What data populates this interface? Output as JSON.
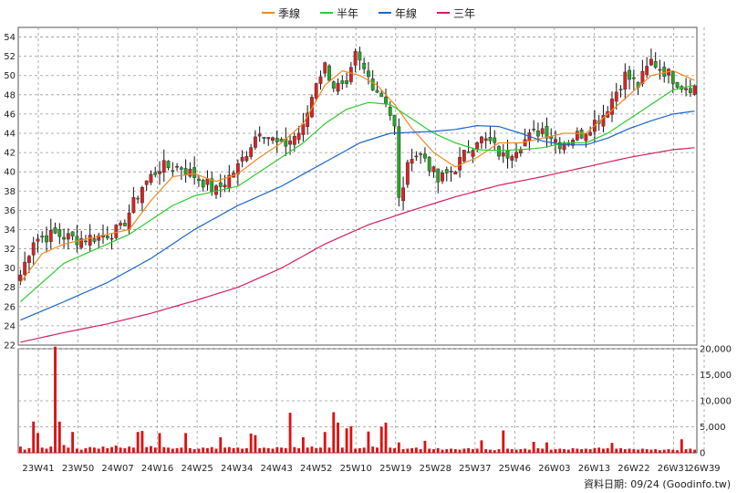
{
  "legend": [
    {
      "label": "季線",
      "color": "#f08a20"
    },
    {
      "label": "半年",
      "color": "#2ecc2e"
    },
    {
      "label": "年線",
      "color": "#1a66cc"
    },
    {
      "label": "三年",
      "color": "#d4205a"
    }
  ],
  "source_text": "資料日期: 09/24  (Goodinfo.tw)",
  "chart_data": [
    {
      "type": "candlestick",
      "title": "",
      "ylim": [
        22,
        55
      ],
      "y_ticks": [
        "22",
        "24",
        "26",
        "28",
        "30",
        "32",
        "34",
        "36",
        "38",
        "40",
        "42",
        "44",
        "46",
        "48",
        "50",
        "52",
        "54"
      ],
      "x_ticks": [
        "23W41",
        "23W50",
        "24W07",
        "24W16",
        "24W25",
        "24W34",
        "24W43",
        "24W52",
        "25W10",
        "25W19",
        "25W28",
        "25W37",
        "25W46",
        "26W03",
        "26W13",
        "26W22",
        "26W31",
        "26W39"
      ],
      "grid": true,
      "up_color": "#e02020",
      "down_color": "#22aa22",
      "close_key_points": [
        [
          0,
          29.3
        ],
        [
          3,
          33.0
        ],
        [
          8,
          33.5
        ],
        [
          13,
          33.0
        ],
        [
          18,
          33.3
        ],
        [
          23,
          34.0
        ],
        [
          28,
          38.5
        ],
        [
          32,
          40.5
        ],
        [
          37,
          40.5
        ],
        [
          42,
          39.0
        ],
        [
          45,
          38.0
        ],
        [
          50,
          40.5
        ],
        [
          55,
          44.5
        ],
        [
          60,
          42.5
        ],
        [
          65,
          44.5
        ],
        [
          68,
          49.5
        ],
        [
          70,
          51.0
        ],
        [
          72,
          49.0
        ],
        [
          75,
          48.5
        ],
        [
          77,
          52.0
        ],
        [
          79,
          50.5
        ],
        [
          82,
          48.5
        ],
        [
          84,
          47.5
        ],
        [
          86,
          44.5
        ],
        [
          87,
          37.0
        ],
        [
          90,
          42.0
        ],
        [
          93,
          41.5
        ],
        [
          96,
          39.0
        ],
        [
          100,
          40.5
        ],
        [
          105,
          43.5
        ],
        [
          108,
          43.0
        ],
        [
          111,
          41.5
        ],
        [
          115,
          43.0
        ],
        [
          120,
          44.5
        ],
        [
          124,
          43.0
        ],
        [
          129,
          44.0
        ],
        [
          134,
          46.0
        ],
        [
          139,
          50.0
        ],
        [
          142,
          49.0
        ],
        [
          145,
          51.5
        ],
        [
          148,
          50.5
        ],
        [
          152,
          49.0
        ],
        [
          155,
          48.8
        ]
      ],
      "ma_series": [
        {
          "key": "quarter",
          "key_points": [
            [
              0,
              28.5
            ],
            [
              5,
              31.5
            ],
            [
              10,
              32.5
            ],
            [
              15,
              33.0
            ],
            [
              20,
              33.5
            ],
            [
              25,
              34.0
            ],
            [
              30,
              37.0
            ],
            [
              35,
              39.5
            ],
            [
              40,
              39.8
            ],
            [
              45,
              39.0
            ],
            [
              50,
              39.8
            ],
            [
              55,
              41.5
            ],
            [
              60,
              43.0
            ],
            [
              65,
              45.0
            ],
            [
              70,
              49.0
            ],
            [
              74,
              50.5
            ],
            [
              78,
              50.0
            ],
            [
              82,
              49.0
            ],
            [
              86,
              47.0
            ],
            [
              90,
              44.5
            ],
            [
              95,
              42.0
            ],
            [
              100,
              40.5
            ],
            [
              105,
              41.5
            ],
            [
              110,
              43.0
            ],
            [
              115,
              43.0
            ],
            [
              120,
              43.5
            ],
            [
              125,
              44.0
            ],
            [
              130,
              44.0
            ],
            [
              135,
              46.0
            ],
            [
              140,
              48.0
            ],
            [
              145,
              50.0
            ],
            [
              150,
              50.5
            ],
            [
              155,
              49.5
            ]
          ]
        },
        {
          "key": "half",
          "key_points": [
            [
              0,
              26.5
            ],
            [
              5,
              28.5
            ],
            [
              10,
              30.5
            ],
            [
              15,
              31.5
            ],
            [
              20,
              32.5
            ],
            [
              25,
              33.5
            ],
            [
              30,
              35.0
            ],
            [
              35,
              36.5
            ],
            [
              40,
              37.5
            ],
            [
              45,
              38.0
            ],
            [
              50,
              38.5
            ],
            [
              55,
              40.0
            ],
            [
              60,
              41.5
            ],
            [
              65,
              43.0
            ],
            [
              70,
              45.0
            ],
            [
              75,
              46.5
            ],
            [
              80,
              47.2
            ],
            [
              85,
              47.0
            ],
            [
              90,
              45.5
            ],
            [
              95,
              44.0
            ],
            [
              100,
              43.0
            ],
            [
              105,
              42.3
            ],
            [
              110,
              42.2
            ],
            [
              115,
              42.3
            ],
            [
              120,
              42.5
            ],
            [
              125,
              43.0
            ],
            [
              130,
              43.0
            ],
            [
              135,
              44.0
            ],
            [
              140,
              45.5
            ],
            [
              145,
              47.0
            ],
            [
              150,
              48.5
            ],
            [
              155,
              49.0
            ]
          ]
        },
        {
          "key": "year",
          "key_points": [
            [
              0,
              24.6
            ],
            [
              10,
              26.5
            ],
            [
              20,
              28.5
            ],
            [
              30,
              31.0
            ],
            [
              40,
              34.0
            ],
            [
              50,
              36.5
            ],
            [
              60,
              38.5
            ],
            [
              70,
              41.0
            ],
            [
              78,
              43.0
            ],
            [
              85,
              44.0
            ],
            [
              95,
              44.2
            ],
            [
              100,
              44.4
            ],
            [
              105,
              44.8
            ],
            [
              110,
              44.7
            ],
            [
              115,
              44.0
            ],
            [
              120,
              43.2
            ],
            [
              125,
              42.8
            ],
            [
              130,
              42.8
            ],
            [
              135,
              43.5
            ],
            [
              140,
              44.5
            ],
            [
              145,
              45.3
            ],
            [
              150,
              46.0
            ],
            [
              155,
              46.3
            ]
          ]
        },
        {
          "key": "three_year",
          "key_points": [
            [
              0,
              22.3
            ],
            [
              10,
              23.3
            ],
            [
              20,
              24.2
            ],
            [
              30,
              25.3
            ],
            [
              40,
              26.6
            ],
            [
              50,
              28.0
            ],
            [
              60,
              30.0
            ],
            [
              70,
              32.5
            ],
            [
              80,
              34.5
            ],
            [
              90,
              36.0
            ],
            [
              100,
              37.4
            ],
            [
              110,
              38.6
            ],
            [
              120,
              39.5
            ],
            [
              130,
              40.5
            ],
            [
              140,
              41.5
            ],
            [
              150,
              42.3
            ],
            [
              155,
              42.5
            ]
          ]
        }
      ]
    },
    {
      "type": "bar",
      "title": "",
      "ylim": [
        0,
        20000
      ],
      "y_ticks": [
        "0",
        "5,000",
        "10,000",
        "15,000",
        "20,000"
      ],
      "bar_color": "#dd1111",
      "base_values": [
        1200,
        600,
        900,
        1400,
        700,
        1000,
        800,
        1200,
        900,
        1100,
        1500,
        1000,
        700,
        800,
        600,
        900,
        1100,
        1000,
        800,
        1200,
        900,
        1100,
        1400,
        1000,
        900,
        1200,
        1000,
        900,
        800,
        1100,
        1300,
        1000,
        900,
        1100,
        1000,
        800,
        900,
        1000,
        800,
        900,
        700,
        800,
        1000,
        900,
        1100,
        800,
        900,
        1000,
        1100,
        900,
        1000,
        800,
        900,
        1100,
        1000,
        900,
        1000,
        900,
        800,
        1100,
        1000,
        900,
        1000,
        1100,
        900,
        1100,
        1000,
        1200,
        900,
        1000,
        1100,
        1000,
        1200,
        1100,
        1000,
        900,
        1100,
        800,
        900,
        1000,
        1100,
        1200,
        1000,
        900,
        800,
        1000,
        900,
        800,
        700,
        800,
        900,
        1000,
        700,
        600,
        800,
        700,
        900,
        600,
        700,
        800,
        700,
        600,
        800,
        900,
        700,
        800,
        600,
        700,
        600,
        500,
        700,
        600,
        800,
        700,
        600,
        700,
        800,
        600,
        700,
        900,
        800,
        700,
        600,
        700,
        800,
        700,
        600,
        900,
        800,
        700,
        800,
        700,
        900,
        1000,
        800,
        900,
        700,
        800,
        900,
        700,
        800,
        700,
        600,
        800,
        700,
        600,
        700,
        500,
        600,
        700,
        600,
        500,
        600,
        700,
        800,
        600,
        700,
        600
      ],
      "spikes": [
        [
          3,
          6000
        ],
        [
          4,
          3800
        ],
        [
          8,
          21000
        ],
        [
          9,
          6000
        ],
        [
          12,
          4000
        ],
        [
          27,
          4000
        ],
        [
          28,
          4200
        ],
        [
          32,
          3800
        ],
        [
          38,
          3800
        ],
        [
          46,
          3000
        ],
        [
          53,
          3700
        ],
        [
          54,
          3400
        ],
        [
          62,
          7700
        ],
        [
          65,
          3000
        ],
        [
          70,
          4000
        ],
        [
          72,
          7800
        ],
        [
          73,
          5800
        ],
        [
          75,
          4700
        ],
        [
          76,
          5100
        ],
        [
          80,
          4100
        ],
        [
          83,
          5000
        ],
        [
          84,
          5800
        ],
        [
          87,
          2000
        ],
        [
          93,
          2300
        ],
        [
          106,
          2400
        ],
        [
          111,
          4300
        ],
        [
          118,
          2100
        ],
        [
          121,
          2000
        ],
        [
          136,
          1900
        ],
        [
          152,
          2600
        ]
      ]
    }
  ]
}
